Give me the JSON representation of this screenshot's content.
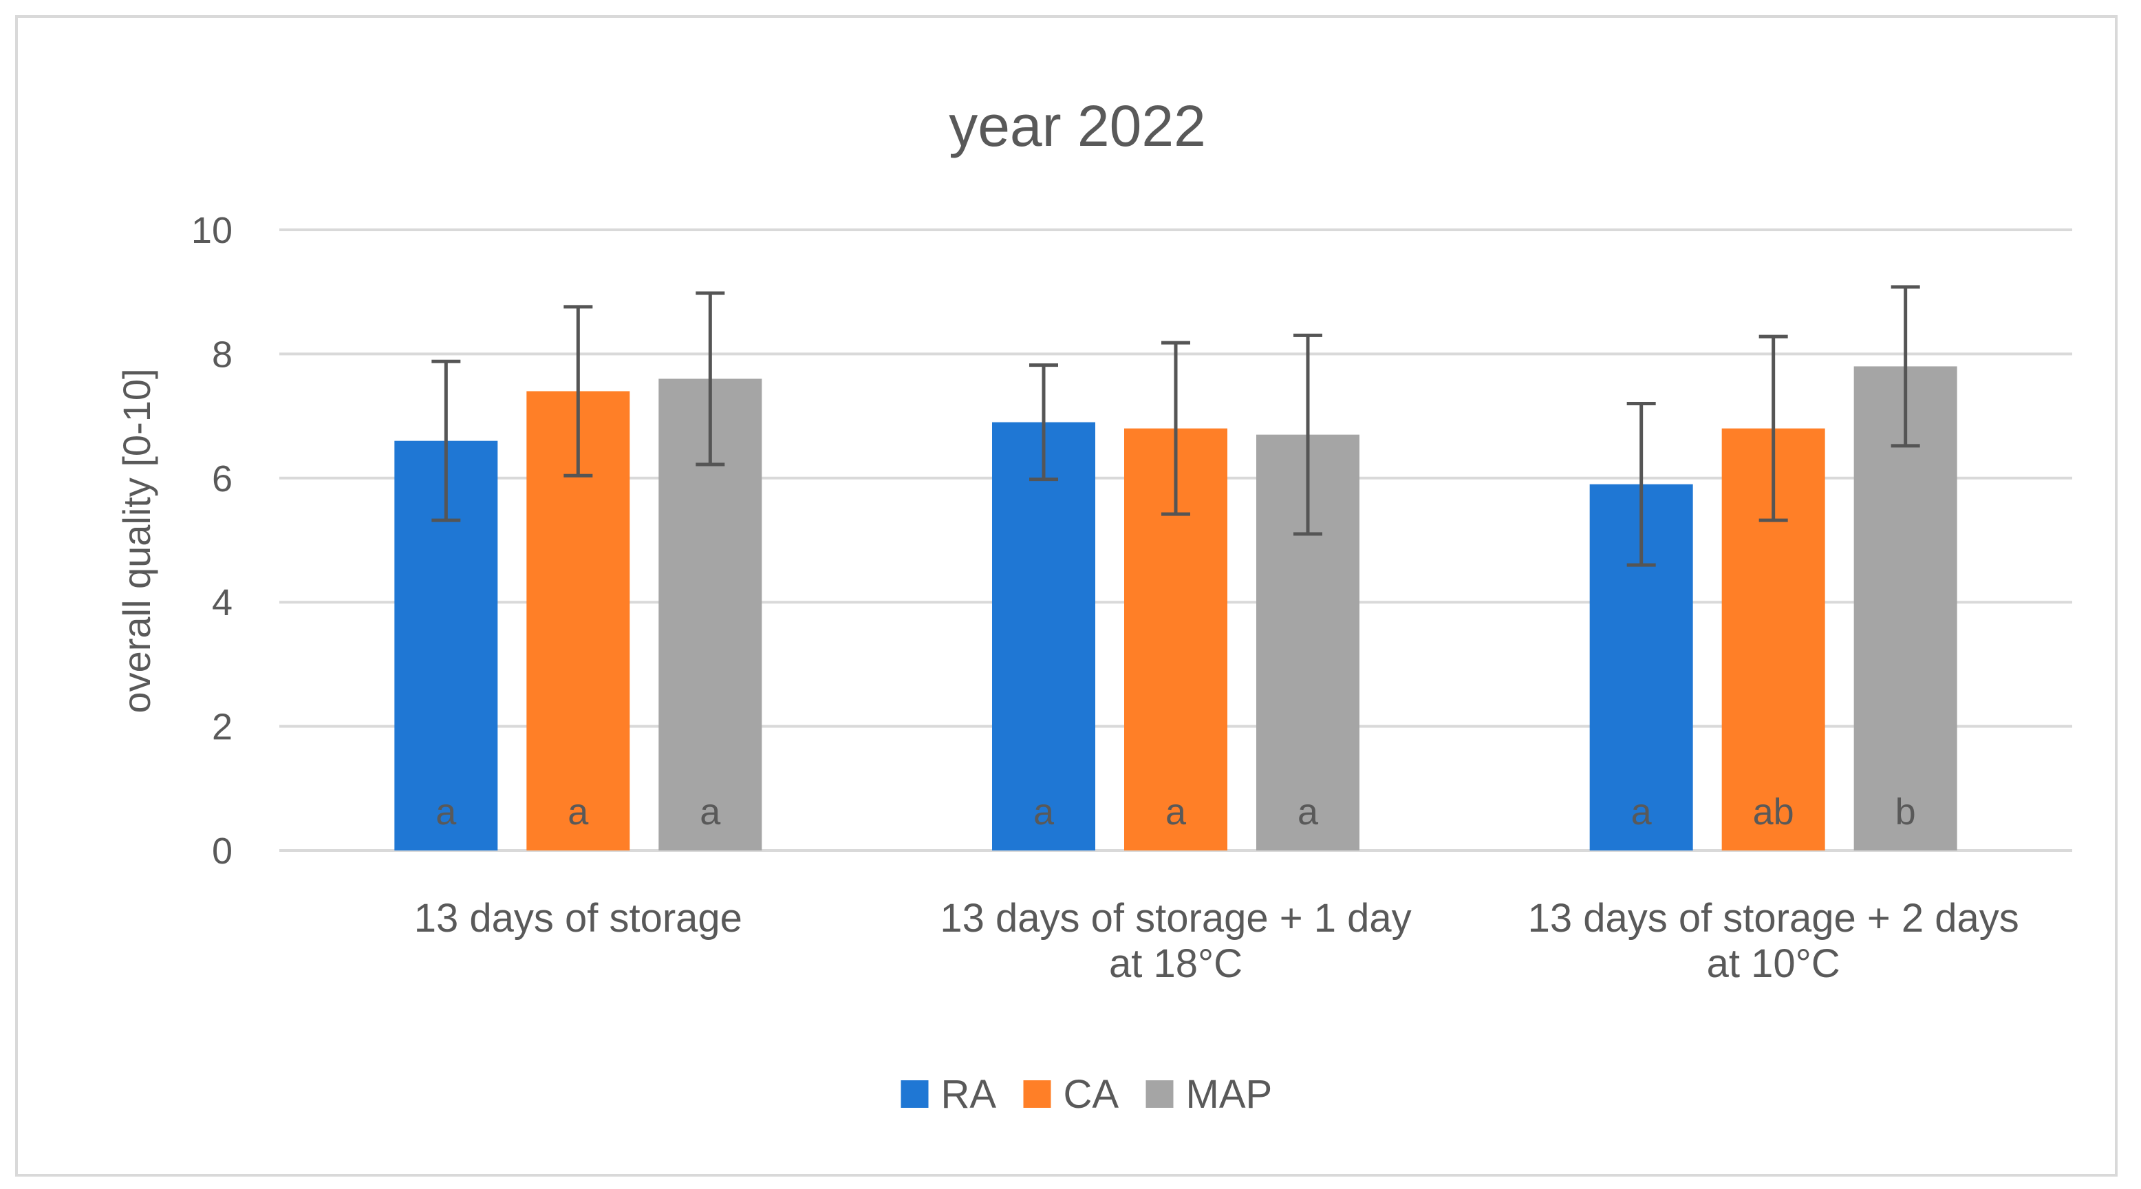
{
  "chart_data": {
    "type": "bar",
    "title": "year 2022",
    "xlabel": "",
    "ylabel": "overall quality [0-10]",
    "ylim": [
      0,
      10
    ],
    "yticks": [
      0,
      2,
      4,
      6,
      8,
      10
    ],
    "grid": true,
    "legend_position": "bottom-center",
    "categories": [
      [
        "13 days of storage"
      ],
      [
        "13 days of storage + 1 day",
        "at 18°C"
      ],
      [
        "13 days of storage + 2 days",
        "at 10°C"
      ]
    ],
    "series": [
      {
        "name": "RA",
        "color": "#1F77D4",
        "values": [
          6.6,
          6.9,
          5.9
        ],
        "errors": [
          1.28,
          0.92,
          1.3
        ],
        "significance": [
          "a",
          "a",
          "a"
        ]
      },
      {
        "name": "CA",
        "color": "#FF7F27",
        "values": [
          7.4,
          6.8,
          6.8
        ],
        "errors": [
          1.36,
          1.38,
          1.48
        ],
        "significance": [
          "a",
          "a",
          "ab"
        ]
      },
      {
        "name": "MAP",
        "color": "#A5A5A5",
        "values": [
          7.6,
          6.7,
          7.8
        ],
        "errors": [
          1.38,
          1.6,
          1.28
        ],
        "significance": [
          "a",
          "a",
          "b"
        ]
      }
    ]
  }
}
